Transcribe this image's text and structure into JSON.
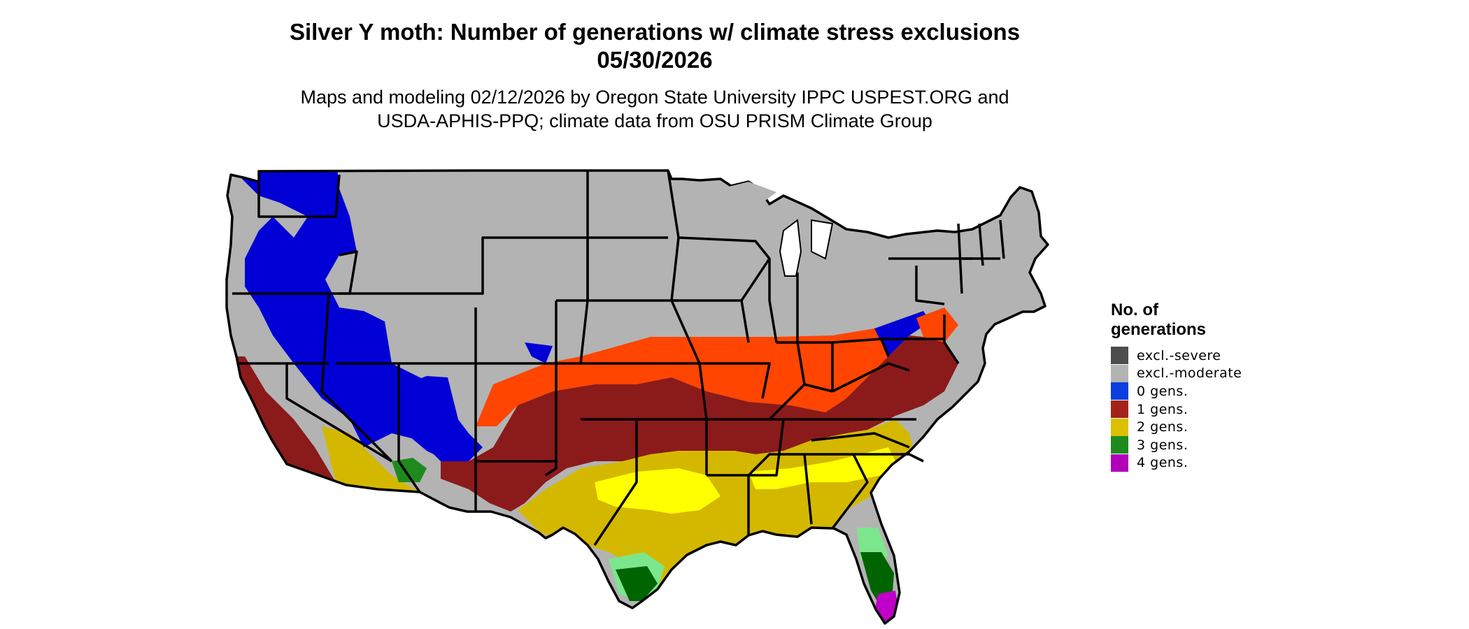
{
  "title": {
    "line1": "Silver Y moth: Number of generations w/ climate stress exclusions",
    "line2": "05/30/2026"
  },
  "subtitle": {
    "line1": "Maps and modeling 02/12/2026 by Oregon State University IPPC USPEST.ORG and",
    "line2": "USDA-APHIS-PPQ; climate data from OSU PRISM Climate Group"
  },
  "legend": {
    "title_line1": "No. of",
    "title_line2": "generations",
    "items": [
      {
        "label": "excl.-severe",
        "color": "#4d4d4d"
      },
      {
        "label": "excl.-moderate",
        "color": "#b3b3b3"
      },
      {
        "label": "0 gens.",
        "color": "#0a3ede"
      },
      {
        "label": "1 gens.",
        "color": "#a3231a"
      },
      {
        "label": "2 gens.",
        "color": "#dcc000"
      },
      {
        "label": "3 gens.",
        "color": "#1e8a1e"
      },
      {
        "label": "4 gens.",
        "color": "#b000b8"
      }
    ]
  },
  "map_colors": {
    "excluded_moderate": "#b3b3b3",
    "zero_gens": "#0000d6",
    "one_gen": "#8b1a1a",
    "one_gen_light": "#ff4500",
    "two_gens": "#d4b800",
    "two_gens_light": "#ffff00",
    "three_gens": "#006400",
    "three_gens_light": "#7ce68c",
    "four_gens": "#c000c8",
    "water": "#ffffff",
    "borders": "#000000"
  }
}
